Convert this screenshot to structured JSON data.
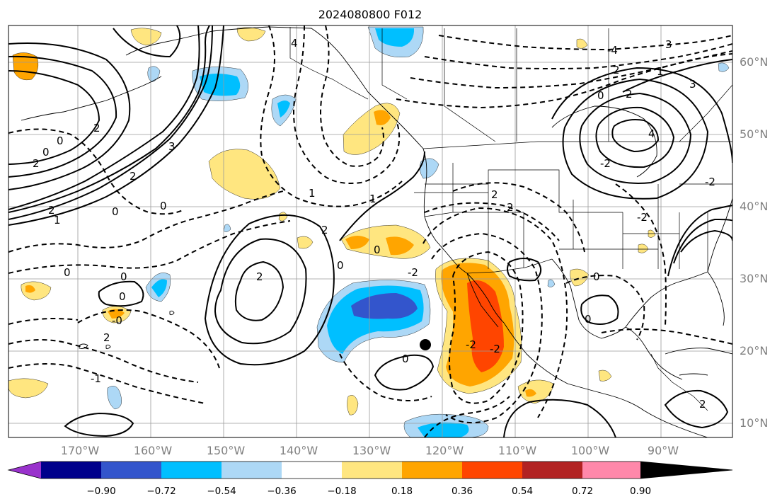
{
  "title": "2024080800 F012",
  "map": {
    "lat_labels": [
      "60°N",
      "50°N",
      "40°N",
      "30°N",
      "20°N",
      "10°N"
    ],
    "lon_labels": [
      "170°W",
      "160°W",
      "150°W",
      "140°W",
      "130°W",
      "120°W",
      "110°W",
      "100°W",
      "90°W"
    ],
    "contour_labels": [
      "4",
      "0",
      "0",
      "2",
      "3",
      "2",
      "2",
      "1",
      "0",
      "0",
      "0",
      "2",
      "1",
      "1",
      "2",
      "2",
      "0",
      "0",
      "-2",
      "2",
      "2",
      "0",
      "0",
      "-0",
      "2",
      "-1",
      "-4",
      "3",
      "2",
      "1",
      "3",
      "0",
      "2",
      "4",
      "-2",
      "-2",
      "-2",
      "0",
      "0",
      "0",
      "2",
      "-2",
      "-2"
    ],
    "marker": "filled-circle"
  },
  "colorbar": {
    "ticks": [
      "−0.90",
      "−0.72",
      "−0.54",
      "−0.36",
      "−0.18",
      "0.18",
      "0.36",
      "0.54",
      "0.72",
      "0.90"
    ],
    "colors": [
      "#9932cc",
      "#00008b",
      "#3355cc",
      "#00bfff",
      "#add8f6",
      "#ffffff",
      "#ffe680",
      "#ffa500",
      "#ff4500",
      "#b22222",
      "#ff88aa"
    ]
  }
}
